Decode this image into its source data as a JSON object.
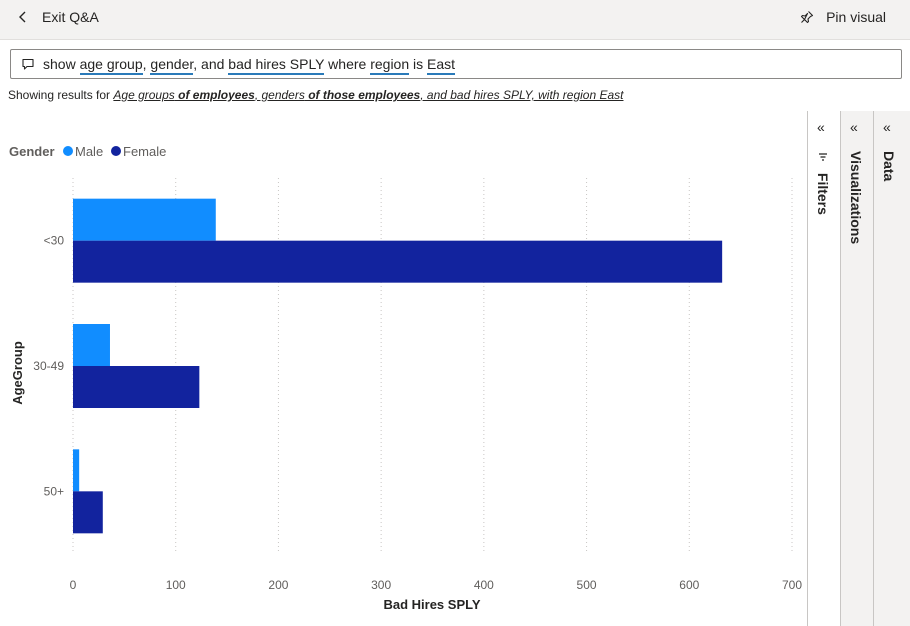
{
  "header": {
    "exit_label": "Exit Q&A",
    "pin_label": "Pin visual"
  },
  "query": {
    "parts": [
      {
        "text": "show ",
        "token": false
      },
      {
        "text": "age group",
        "token": true
      },
      {
        "text": ", ",
        "token": false
      },
      {
        "text": "gender",
        "token": true
      },
      {
        "text": ", and ",
        "token": false
      },
      {
        "text": "bad hires SPLY",
        "token": true
      },
      {
        "text": " where ",
        "token": false
      },
      {
        "text": "region",
        "token": true
      },
      {
        "text": " is ",
        "token": false
      },
      {
        "text": "East",
        "token": true
      }
    ]
  },
  "showing": {
    "prefix": "Showing results for ",
    "parts": [
      {
        "text": "Age groups",
        "bold": false
      },
      {
        "text": " of employees",
        "bold": true
      },
      {
        "text": ", genders",
        "bold": false
      },
      {
        "text": " of those employees",
        "bold": true
      },
      {
        "text": ", and bad hires SPLY, with region East",
        "bold": false
      }
    ]
  },
  "panes": [
    {
      "label": "Filters",
      "chevron": "«",
      "icon": "filter-icon"
    },
    {
      "label": "Visualizations",
      "chevron": "«"
    },
    {
      "label": "Data",
      "chevron": "«"
    }
  ],
  "chart_data": {
    "type": "bar",
    "orientation": "horizontal",
    "legend_title": "Gender",
    "legend_position": "top-left",
    "categories": [
      "<30",
      "30-49",
      "50+"
    ],
    "series": [
      {
        "name": "Male",
        "color": "#118dff",
        "values": [
          139,
          36,
          6
        ]
      },
      {
        "name": "Female",
        "color": "#12239e",
        "values": [
          632,
          123,
          29
        ]
      }
    ],
    "xlabel": "Bad Hires SPLY",
    "ylabel": "AgeGroup",
    "xlim": [
      0,
      700
    ],
    "xticks": [
      "0",
      "100",
      "200",
      "300",
      "400",
      "500",
      "600",
      "700"
    ],
    "grid": "vertical-dotted"
  }
}
